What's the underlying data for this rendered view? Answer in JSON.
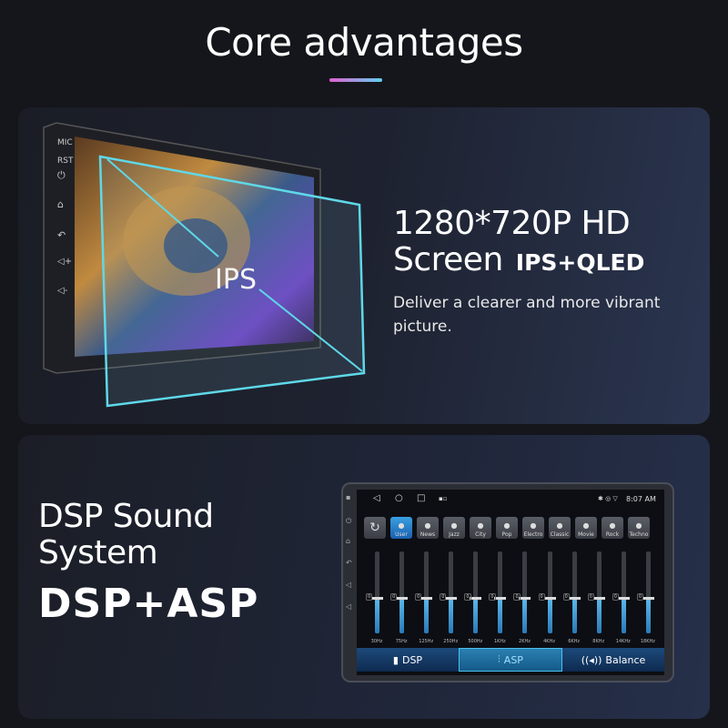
{
  "title": "Core advantages",
  "screen_section": {
    "headline_line1": "1280*720P HD",
    "headline_line2": "Screen",
    "headline_badge": "IPS+QLED",
    "description_line1": "Deliver a clearer and more vibrant",
    "description_line2": "picture.",
    "glass_label": "IPS",
    "side_labels": [
      "MIC",
      "RST"
    ],
    "side_icons": [
      "power-icon",
      "home-icon",
      "back-icon",
      "volume-up-icon",
      "volume-down-icon"
    ]
  },
  "dsp_section": {
    "headline_line1": "DSP Sound",
    "headline_line2": "System",
    "headline_bold": "DSP+ASP",
    "device": {
      "time": "8:07 AM",
      "nav_icons": [
        "back-triangle-icon",
        "home-circle-icon",
        "recents-square-icon"
      ],
      "status_icons": [
        "bluetooth-icon",
        "location-icon",
        "wifi-icon"
      ],
      "presets": [
        "User",
        "News",
        "Jazz",
        "City",
        "Pop",
        "Electro",
        "Classic",
        "Movie",
        "Rock",
        "Techno"
      ],
      "active_preset": "User",
      "bands": [
        {
          "freq": "30Hz",
          "value": "0"
        },
        {
          "freq": "75Hz",
          "value": "0"
        },
        {
          "freq": "125Hz",
          "value": "0"
        },
        {
          "freq": "250Hz",
          "value": "0"
        },
        {
          "freq": "500Hz",
          "value": "0"
        },
        {
          "freq": "1KHz",
          "value": "0"
        },
        {
          "freq": "2KHz",
          "value": "0"
        },
        {
          "freq": "4KHz",
          "value": "0"
        },
        {
          "freq": "6KHz",
          "value": "0"
        },
        {
          "freq": "8KHz",
          "value": "0"
        },
        {
          "freq": "14KHz",
          "value": "0"
        },
        {
          "freq": "18KHz",
          "value": "0"
        }
      ],
      "tabs": [
        {
          "label": "DSP",
          "icon": "bar-chart-icon"
        },
        {
          "label": "ASP",
          "icon": "sliders-icon"
        },
        {
          "label": "Balance",
          "icon": "speaker-icon"
        }
      ],
      "active_tab": "ASP"
    }
  },
  "colors": {
    "accent_cyan": "#5fd0f0",
    "accent_pink": "#e05fd0",
    "eq_blue": "#3a9ad8"
  }
}
